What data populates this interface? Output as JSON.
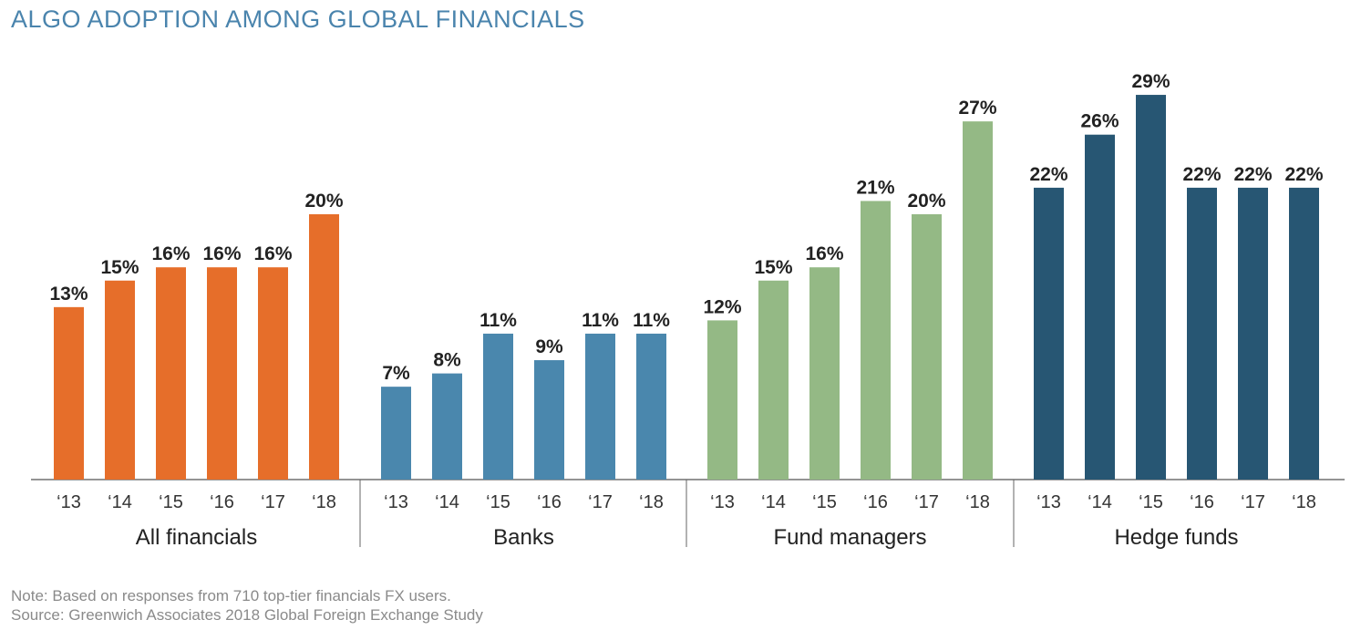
{
  "title": "ALGO ADOPTION AMONG GLOBAL FINANCIALS",
  "note": "Note: Based on responses from 710 top-tier financials FX users.",
  "source": "Source: Greenwich Associates 2018 Global Foreign Exchange Study",
  "chart_data": {
    "type": "bar",
    "title": "ALGO ADOPTION AMONG GLOBAL FINANCIALS",
    "xlabel": "",
    "ylabel": "",
    "ylim": [
      0,
      30
    ],
    "grid": false,
    "value_suffix": "%",
    "groups": [
      {
        "name": "All financials",
        "color": "#e66e2a",
        "categories": [
          "‘13",
          "‘14",
          "‘15",
          "‘16",
          "‘17",
          "‘18"
        ],
        "values": [
          13,
          15,
          16,
          16,
          16,
          20
        ]
      },
      {
        "name": "Banks",
        "color": "#4a87ad",
        "categories": [
          "‘13",
          "‘14",
          "‘15",
          "‘16",
          "‘17",
          "‘18"
        ],
        "values": [
          7,
          8,
          11,
          9,
          11,
          11
        ]
      },
      {
        "name": "Fund managers",
        "color": "#94b985",
        "categories": [
          "‘13",
          "‘14",
          "‘15",
          "‘16",
          "‘17",
          "‘18"
        ],
        "values": [
          12,
          15,
          16,
          21,
          20,
          27
        ]
      },
      {
        "name": "Hedge funds",
        "color": "#275673",
        "categories": [
          "‘13",
          "‘14",
          "‘15",
          "‘16",
          "‘17",
          "‘18"
        ],
        "values": [
          22,
          26,
          29,
          22,
          22,
          22
        ]
      }
    ]
  }
}
